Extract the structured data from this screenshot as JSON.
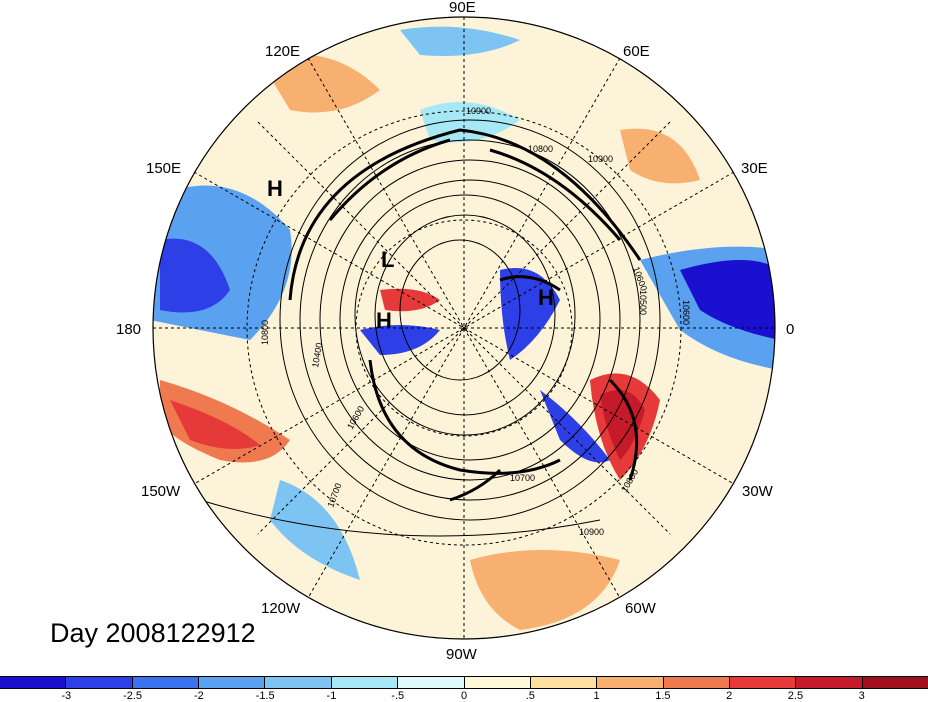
{
  "map": {
    "projection": "north-polar-stereographic",
    "longitude_labels": [
      {
        "id": "lon-90e",
        "text": "90E"
      },
      {
        "id": "lon-60e",
        "text": "60E"
      },
      {
        "id": "lon-120e",
        "text": "120E"
      },
      {
        "id": "lon-30e",
        "text": "30E"
      },
      {
        "id": "lon-150e",
        "text": "150E"
      },
      {
        "id": "lon-180",
        "text": "180"
      },
      {
        "id": "lon-0",
        "text": "0"
      },
      {
        "id": "lon-150w",
        "text": "150W"
      },
      {
        "id": "lon-30w",
        "text": "30W"
      },
      {
        "id": "lon-120w",
        "text": "120W"
      },
      {
        "id": "lon-60w",
        "text": "60W"
      },
      {
        "id": "lon-90w",
        "text": "90W"
      }
    ],
    "contour_labels": [
      "10900",
      "10800",
      "10900",
      "10600",
      "10500",
      "10600",
      "10800",
      "10400",
      "10600",
      "10700",
      "10700",
      "10900",
      "10800"
    ],
    "pressure_centers": [
      "H",
      "L",
      "H",
      "H"
    ],
    "date_label": "Day 2008122912"
  },
  "colorbar": {
    "ticks": [
      "-3",
      "-2.5",
      "-2",
      "-1.5",
      "-1",
      "-.5",
      "0",
      ".5",
      "1",
      "1.5",
      "2",
      "2.5",
      "3"
    ],
    "colors": [
      "#1a10d0",
      "#2d3fe6",
      "#3d72ee",
      "#5aa1f0",
      "#7dc4f2",
      "#a6e8f5",
      "#e0f8fb",
      "#fff8d8",
      "#fde0a0",
      "#f8b070",
      "#f07a50",
      "#e63a3a",
      "#c41a2a",
      "#a0101e"
    ]
  }
}
